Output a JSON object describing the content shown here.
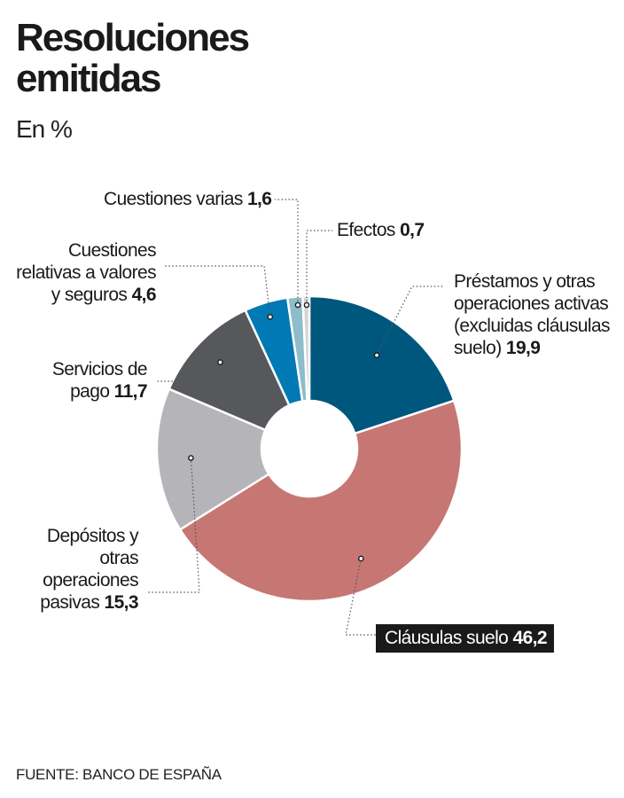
{
  "header": {
    "title": "Resoluciones emitidas",
    "subtitle": "En %"
  },
  "footer": {
    "source": "FUENTE: BANCO DE ESPAÑA"
  },
  "chart_data": {
    "type": "pie",
    "title": "Resoluciones emitidas",
    "subtitle": "En %",
    "donut": true,
    "start_angle_deg": 0,
    "direction": "clockwise",
    "slices": [
      {
        "label": "Préstamos y otras operaciones activas (excluidas cláusulas suelo)",
        "value": 19.9,
        "value_label": "19,9",
        "color": "#00577e"
      },
      {
        "label": "Cláusulas suelo",
        "value": 46.2,
        "value_label": "46,2",
        "color": "#c67773"
      },
      {
        "label": "Depósitos y otras operaciones pasivas",
        "value": 15.3,
        "value_label": "15,3",
        "color": "#b5b4b9"
      },
      {
        "label": "Servicios de pago",
        "value": 11.7,
        "value_label": "11,7",
        "color": "#57585c"
      },
      {
        "label": "Cuestiones relativas a valores y seguros",
        "value": 4.6,
        "value_label": "4,6",
        "color": "#0079b4"
      },
      {
        "label": "Cuestiones varias",
        "value": 1.6,
        "value_label": "1,6",
        "color": "#8ebccb"
      },
      {
        "label": "Efectos",
        "value": 0.7,
        "value_label": "0,7",
        "color": "#d4d4d4"
      }
    ]
  }
}
